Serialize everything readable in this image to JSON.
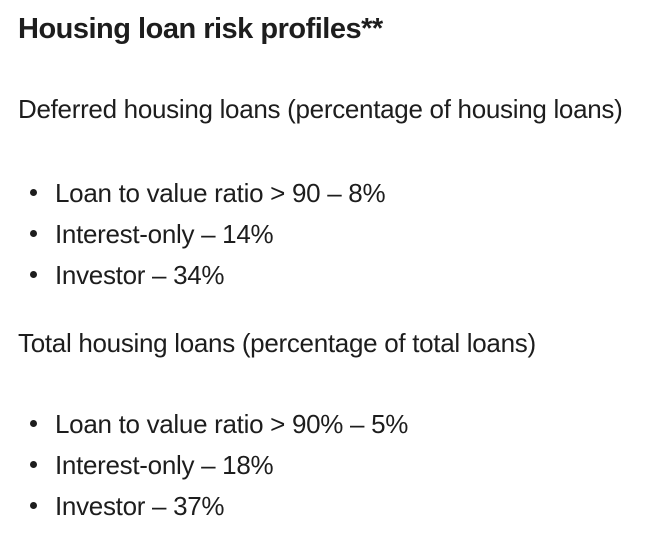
{
  "page": {
    "heading": "Housing loan risk profiles**",
    "sections": [
      {
        "title": "Deferred housing loans (percentage of housing loans)",
        "items": [
          "Loan to value ratio > 90 – 8%",
          "Interest-only – 14%",
          "Investor – 34%"
        ]
      },
      {
        "title": "Total housing loans (percentage of total loans)",
        "items": [
          "Loan to value ratio > 90% – 5%",
          "Interest-only – 18%",
          "Investor – 37%"
        ]
      }
    ]
  },
  "colors": {
    "text": "#1d1d1d",
    "background": "#ffffff"
  }
}
